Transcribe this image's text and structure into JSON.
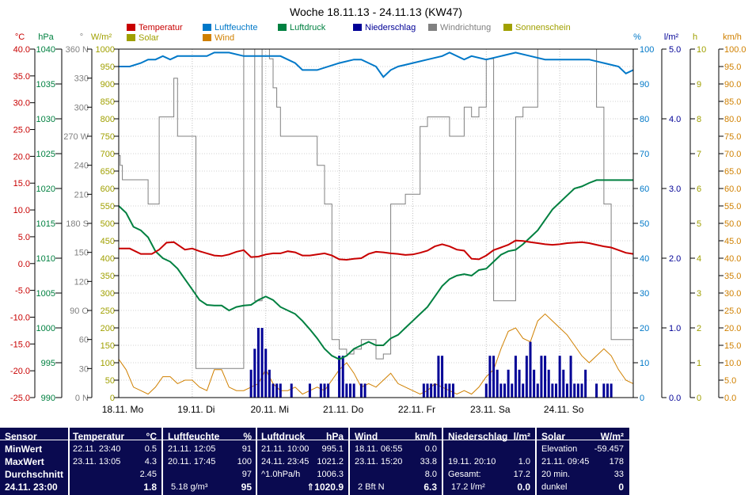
{
  "chart_data": {
    "type": "line",
    "title": "Woche 18.11.13 - 24.11.13 (KW47)",
    "x_labels": [
      "18.11. Mo",
      "19.11. Di",
      "20.11. Mi",
      "21.11. Do",
      "22.11. Fr",
      "23.11. Sa",
      "24.11. So"
    ],
    "legend": [
      {
        "name": "Temperatur",
        "color": "#c80000"
      },
      {
        "name": "Luftfeuchte",
        "color": "#0078c8"
      },
      {
        "name": "Luftdruck",
        "color": "#008040"
      },
      {
        "name": "Niederschlag",
        "color": "#000096"
      },
      {
        "name": "Windrichtung",
        "color": "#808080"
      },
      {
        "name": "Sonnenschein",
        "color": "#a0a000"
      },
      {
        "name": "Solar",
        "color": "#a0a000"
      },
      {
        "name": "Wind",
        "color": "#d08000"
      }
    ],
    "axes": [
      {
        "unit": "°C",
        "color": "#c80000",
        "min": -25,
        "max": 40,
        "ticks": [
          "40.0",
          "35.0",
          "30.0",
          "25.0",
          "20.0",
          "15.0",
          "10.0",
          "5.0",
          "0.0",
          "-5.0",
          "-10.0",
          "-15.0",
          "-20.0",
          "-25.0"
        ]
      },
      {
        "unit": "hPa",
        "color": "#008040",
        "min": 990,
        "max": 1040,
        "ticks": [
          "1040",
          "1035",
          "1030",
          "1025",
          "1020",
          "1015",
          "1010",
          "1005",
          "1000",
          "995",
          "990"
        ]
      },
      {
        "unit": "°",
        "color": "#808080",
        "min": 0,
        "max": 360,
        "ticks": [
          "360 N",
          "330",
          "300",
          "270 W",
          "240",
          "210",
          "180 S",
          "150",
          "120",
          "90 O",
          "60",
          "30",
          "0 N"
        ]
      },
      {
        "unit": "W/m²",
        "color": "#a0a000",
        "min": 0,
        "max": 1000,
        "ticks": [
          "1000",
          "950",
          "900",
          "850",
          "800",
          "750",
          "700",
          "650",
          "600",
          "550",
          "500",
          "450",
          "400",
          "350",
          "300",
          "250",
          "200",
          "150",
          "100",
          "50",
          "0"
        ]
      },
      {
        "unit": "%",
        "color": "#0078c8",
        "min": 0,
        "max": 100,
        "ticks": [
          "100",
          "90",
          "80",
          "70",
          "60",
          "50",
          "40",
          "30",
          "20",
          "10",
          "0"
        ]
      },
      {
        "unit": "l/m²",
        "color": "#000096",
        "min": 0,
        "max": 5,
        "ticks": [
          "5.0",
          "4.0",
          "3.0",
          "2.0",
          "1.0",
          "0.0"
        ]
      },
      {
        "unit": "h",
        "color": "#a0a000",
        "min": 0,
        "max": 10,
        "ticks": [
          "10",
          "9",
          "8",
          "7",
          "6",
          "5",
          "4",
          "3",
          "2",
          "1",
          "0"
        ]
      },
      {
        "unit": "km/h",
        "color": "#d08000",
        "min": 0,
        "max": 100,
        "ticks": [
          "100.0",
          "95.0",
          "90.0",
          "85.0",
          "80.0",
          "75.0",
          "70.0",
          "65.0",
          "60.0",
          "55.0",
          "50.0",
          "45.0",
          "40.0",
          "35.0",
          "30.0",
          "25.0",
          "20.0",
          "15.0",
          "10.0",
          "5.0",
          "0.0"
        ]
      }
    ],
    "x_range_days": [
      0,
      7
    ],
    "series": [
      {
        "name": "Temperatur",
        "color": "#c80000",
        "x": [
          0,
          0.15,
          0.3,
          0.45,
          0.55,
          0.65,
          0.75,
          0.9,
          1.0,
          1.1,
          1.2,
          1.3,
          1.4,
          1.5,
          1.6,
          1.7,
          1.8,
          1.9,
          2.0,
          2.1,
          2.2,
          2.3,
          2.4,
          2.5,
          2.6,
          2.7,
          2.8,
          2.9,
          3.0,
          3.1,
          3.2,
          3.3,
          3.4,
          3.5,
          3.6,
          3.7,
          3.8,
          3.9,
          4.0,
          4.1,
          4.2,
          4.3,
          4.4,
          4.5,
          4.6,
          4.7,
          4.8,
          4.9,
          5.0,
          5.1,
          5.2,
          5.3,
          5.4,
          5.5,
          5.6,
          5.7,
          5.8,
          5.9,
          6.0,
          6.1,
          6.2,
          6.3,
          6.4,
          6.5,
          6.6,
          6.7,
          6.8,
          6.9,
          7.0
        ],
        "y": [
          2.8,
          2.8,
          1.8,
          1.8,
          2.6,
          3.9,
          4.0,
          2.6,
          2.8,
          2.3,
          1.9,
          1.5,
          1.4,
          1.7,
          2.2,
          2.5,
          1.2,
          1.3,
          1.7,
          1.9,
          1.9,
          2.3,
          2.1,
          1.5,
          1.5,
          1.7,
          1.9,
          1.5,
          0.8,
          0.7,
          0.9,
          1.0,
          1.8,
          2.2,
          2.1,
          1.9,
          1.8,
          1.6,
          1.7,
          2.0,
          2.4,
          3.2,
          3.6,
          3.2,
          2.6,
          2.4,
          0.9,
          0.8,
          1.5,
          2.5,
          3.0,
          3.5,
          4.3,
          4.2,
          4.0,
          3.8,
          3.6,
          3.5,
          3.6,
          3.8,
          3.9,
          4.0,
          3.8,
          3.5,
          3.2,
          3.0,
          2.5,
          2.0,
          1.8
        ]
      },
      {
        "name": "Luftfeuchte",
        "color": "#0078c8",
        "x": [
          0,
          0.15,
          0.3,
          0.4,
          0.5,
          0.6,
          0.7,
          0.8,
          1.0,
          1.2,
          1.3,
          1.5,
          1.7,
          2.0,
          2.2,
          2.4,
          2.5,
          2.7,
          3.0,
          3.2,
          3.3,
          3.5,
          3.6,
          3.7,
          3.8,
          4.0,
          4.2,
          4.4,
          4.5,
          4.7,
          4.8,
          5.0,
          5.2,
          5.4,
          5.6,
          5.8,
          6.0,
          6.2,
          6.4,
          6.6,
          6.8,
          6.9,
          7.0
        ],
        "y": [
          95,
          95,
          96,
          97,
          97,
          98,
          97,
          98,
          98,
          98,
          99,
          99,
          98,
          98,
          98,
          96,
          94,
          94,
          96,
          97,
          97,
          95,
          92,
          94,
          95,
          96,
          97,
          98,
          99,
          97,
          98,
          97,
          98,
          99,
          98,
          97,
          97,
          97,
          97,
          96,
          95,
          93,
          94
        ]
      },
      {
        "name": "Luftdruck",
        "color": "#008040",
        "x": [
          0,
          0.1,
          0.2,
          0.3,
          0.4,
          0.5,
          0.6,
          0.7,
          0.8,
          0.9,
          1.0,
          1.1,
          1.2,
          1.3,
          1.4,
          1.5,
          1.6,
          1.7,
          1.8,
          1.9,
          2.0,
          2.1,
          2.2,
          2.3,
          2.4,
          2.5,
          2.6,
          2.7,
          2.8,
          2.9,
          3.0,
          3.1,
          3.2,
          3.3,
          3.4,
          3.5,
          3.6,
          3.7,
          3.8,
          3.9,
          4.0,
          4.1,
          4.2,
          4.3,
          4.4,
          4.5,
          4.6,
          4.7,
          4.8,
          4.9,
          5.0,
          5.1,
          5.2,
          5.3,
          5.4,
          5.5,
          5.6,
          5.7,
          5.8,
          5.9,
          6.0,
          6.1,
          6.2,
          6.3,
          6.4,
          6.5,
          6.6,
          6.7,
          6.8,
          6.9,
          7.0
        ],
        "y": [
          1017.5,
          1016.5,
          1014.5,
          1014,
          1013,
          1011,
          1010,
          1009.5,
          1008.5,
          1007,
          1005.5,
          1004,
          1003.3,
          1003.2,
          1003.2,
          1002.5,
          1003,
          1003.2,
          1003.3,
          1004,
          1004.5,
          1004,
          1003,
          1002.5,
          1002,
          1001,
          999.8,
          998.5,
          997,
          996,
          995.5,
          996,
          997,
          997.5,
          998,
          997.5,
          997.5,
          998.5,
          999,
          1000,
          1001,
          1002,
          1003,
          1004.5,
          1006,
          1007,
          1007.5,
          1007.7,
          1007.5,
          1008.3,
          1008.5,
          1009.5,
          1010.5,
          1011,
          1011.2,
          1012,
          1013,
          1014,
          1015.5,
          1017,
          1018,
          1019,
          1020,
          1020.3,
          1020.8,
          1021.2,
          1021.2,
          1021.2,
          1021.2,
          1021.2,
          1021.2
        ]
      },
      {
        "name": "Windrichtung",
        "color": "#808080",
        "x": [
          0,
          0.02,
          0.05,
          0.1,
          0.3,
          0.4,
          0.55,
          0.65,
          0.75,
          0.8,
          0.9,
          1.0,
          1.05,
          1.1,
          1.15,
          1.2,
          1.25,
          1.3,
          1.5,
          1.7,
          1.8,
          1.85,
          1.9,
          1.95,
          2.0,
          2.05,
          2.1,
          2.15,
          2.2,
          2.3,
          2.4,
          2.5,
          2.6,
          2.7,
          2.8,
          2.9,
          3.0,
          3.1,
          3.15,
          3.2,
          3.3,
          3.4,
          3.5,
          3.6,
          3.7,
          3.8,
          3.9,
          4.0,
          4.1,
          4.2,
          4.3,
          4.4,
          4.5,
          4.6,
          4.7,
          4.8,
          4.9,
          5.0,
          5.1,
          5.2,
          5.3,
          5.4,
          5.5,
          5.6,
          5.7,
          5.8,
          5.9,
          6.0,
          6.1,
          6.2,
          6.3,
          6.4,
          6.5,
          6.6,
          6.7,
          6.8,
          6.9,
          7.0
        ],
        "y": [
          250,
          240,
          225,
          225,
          225,
          200,
          290,
          290,
          330,
          270,
          270,
          270,
          30,
          30,
          30,
          30,
          30,
          30,
          30,
          360,
          360,
          100,
          100,
          360,
          360,
          350,
          320,
          300,
          270,
          270,
          270,
          270,
          270,
          240,
          200,
          60,
          50,
          45,
          45,
          50,
          60,
          60,
          40,
          45,
          200,
          200,
          210,
          210,
          280,
          290,
          290,
          290,
          270,
          270,
          300,
          290,
          300,
          350,
          100,
          100,
          100,
          290,
          300,
          300,
          360,
          360,
          360,
          360,
          360,
          360,
          360,
          360,
          300,
          200,
          60,
          60,
          60,
          360
        ]
      },
      {
        "name": "Niederschlag",
        "color": "#000096",
        "bars": true,
        "x": [
          1.8,
          1.85,
          1.9,
          1.95,
          2.0,
          2.05,
          2.1,
          2.15,
          2.2,
          2.35,
          2.6,
          2.75,
          2.8,
          2.85,
          3.0,
          3.05,
          3.1,
          3.15,
          3.2,
          3.3,
          3.35,
          4.15,
          4.2,
          4.25,
          4.3,
          4.35,
          4.4,
          4.45,
          4.5,
          4.55,
          5.0,
          5.05,
          5.1,
          5.15,
          5.2,
          5.25,
          5.3,
          5.35,
          5.4,
          5.45,
          5.5,
          5.55,
          5.6,
          5.65,
          5.7,
          5.75,
          5.8,
          5.85,
          5.9,
          5.95,
          6.0,
          6.05,
          6.1,
          6.15,
          6.2,
          6.25,
          6.3,
          6.35,
          6.5,
          6.6,
          6.65,
          6.7
        ],
        "y": [
          0.4,
          0.7,
          1.0,
          1.0,
          0.7,
          0.4,
          0.2,
          0.2,
          0.2,
          0.2,
          0.2,
          0.2,
          0.2,
          0.2,
          0.6,
          0.6,
          0.2,
          0.2,
          0.2,
          0.2,
          0.2,
          0.2,
          0.2,
          0.2,
          0.2,
          0.6,
          0.6,
          0.2,
          0.2,
          0.2,
          0.2,
          0.6,
          0.6,
          0.4,
          0.2,
          0.2,
          0.4,
          0.2,
          0.6,
          0.4,
          0.2,
          0.6,
          0.8,
          0.4,
          0.2,
          0.6,
          0.6,
          0.4,
          0.2,
          0.2,
          0.6,
          0.4,
          0.2,
          0.6,
          0.2,
          0.2,
          0.2,
          0.4,
          0.2,
          0.2,
          0.2,
          0.2
        ]
      },
      {
        "name": "Wind",
        "color": "#d08000",
        "x": [
          0,
          0.1,
          0.2,
          0.3,
          0.4,
          0.5,
          0.6,
          0.7,
          0.8,
          0.9,
          1.0,
          1.1,
          1.2,
          1.3,
          1.4,
          1.5,
          1.6,
          1.7,
          1.8,
          1.9,
          2.0,
          2.1,
          2.2,
          2.3,
          2.4,
          2.5,
          2.6,
          2.7,
          2.8,
          2.9,
          3.0,
          3.1,
          3.2,
          3.3,
          3.4,
          3.5,
          3.6,
          3.7,
          3.8,
          3.9,
          4.0,
          4.1,
          4.2,
          4.3,
          4.4,
          4.5,
          4.6,
          4.7,
          4.8,
          4.9,
          5.0,
          5.1,
          5.2,
          5.3,
          5.4,
          5.5,
          5.6,
          5.7,
          5.8,
          5.9,
          6.0,
          6.1,
          6.2,
          6.3,
          6.4,
          6.5,
          6.6,
          6.7,
          6.8,
          6.9,
          7.0
        ],
        "y": [
          11,
          8,
          3,
          2,
          1,
          3,
          6,
          6,
          4,
          5,
          5,
          3,
          2,
          8,
          8,
          3,
          2,
          2,
          3,
          4,
          8,
          4,
          2,
          2,
          3,
          1,
          2,
          3,
          2,
          5,
          8,
          10,
          7,
          3,
          4,
          3,
          5,
          7,
          4,
          3,
          2,
          1,
          2,
          4,
          3,
          2,
          1,
          2,
          1,
          3,
          6,
          8,
          14,
          19,
          20,
          17,
          16,
          22,
          24,
          22,
          20,
          18,
          15,
          12,
          10,
          12,
          14,
          12,
          8,
          5,
          4
        ]
      },
      {
        "name": "Solar",
        "color": "#a0a000",
        "x": [
          0,
          7
        ],
        "y": [
          0,
          0
        ]
      }
    ]
  },
  "stats": {
    "sensor": {
      "header": "Sensor",
      "rows": [
        "MinWert",
        "MaxWert",
        "Durchschnitt",
        "24.11. 23:00"
      ]
    },
    "temperatur": {
      "header": "Temperatur",
      "unit": "°C",
      "min_time": "22.11. 23:40",
      "min": "0.5",
      "max_time": "23.11. 13:05",
      "max": "4.3",
      "avg": "2.45",
      "current": "1.8"
    },
    "luftfeuchte": {
      "header": "Luftfeuchte",
      "unit": "%",
      "min_time": "21.11. 12:05",
      "min": "91",
      "max_time": "20.11. 17:45",
      "max": "100",
      "avg": "97",
      "abs": "5.18 g/m³",
      "current": "95"
    },
    "luftdruck": {
      "header": "Luftdruck",
      "unit": "hPa",
      "min_time": "21.11. 10:00",
      "min": "995.1",
      "max_time": "24.11. 23:45",
      "max": "1021.2",
      "trend": "^1.0hPa/h",
      "avg": "1006.3",
      "current": "⇑1020.9"
    },
    "wind": {
      "header": "Wind",
      "unit": "km/h",
      "min_time": "18.11. 06:55",
      "min": "0.0",
      "max_time": "23.11. 15:20",
      "max": "33.8",
      "avg": "8.0",
      "bft": "2 Bft N",
      "current": "6.3"
    },
    "niederschlag": {
      "header": "Niederschlag",
      "unit": "l/m²",
      "max_time": "19.11. 20:10",
      "max": "1.0",
      "gesamt_label": "Gesamt:",
      "gesamt": "17.2",
      "sum": "17.2 l/m²",
      "current": "0.0"
    },
    "solar": {
      "header": "Solar",
      "unit": "W/m²",
      "elev_label": "Elevation",
      "elev": "-59.457",
      "max_time": "21.11. 09:45",
      "max": "178",
      "min20_label": "20 min.",
      "min20": "33",
      "dark_label": "dunkel",
      "dark": "0"
    }
  }
}
